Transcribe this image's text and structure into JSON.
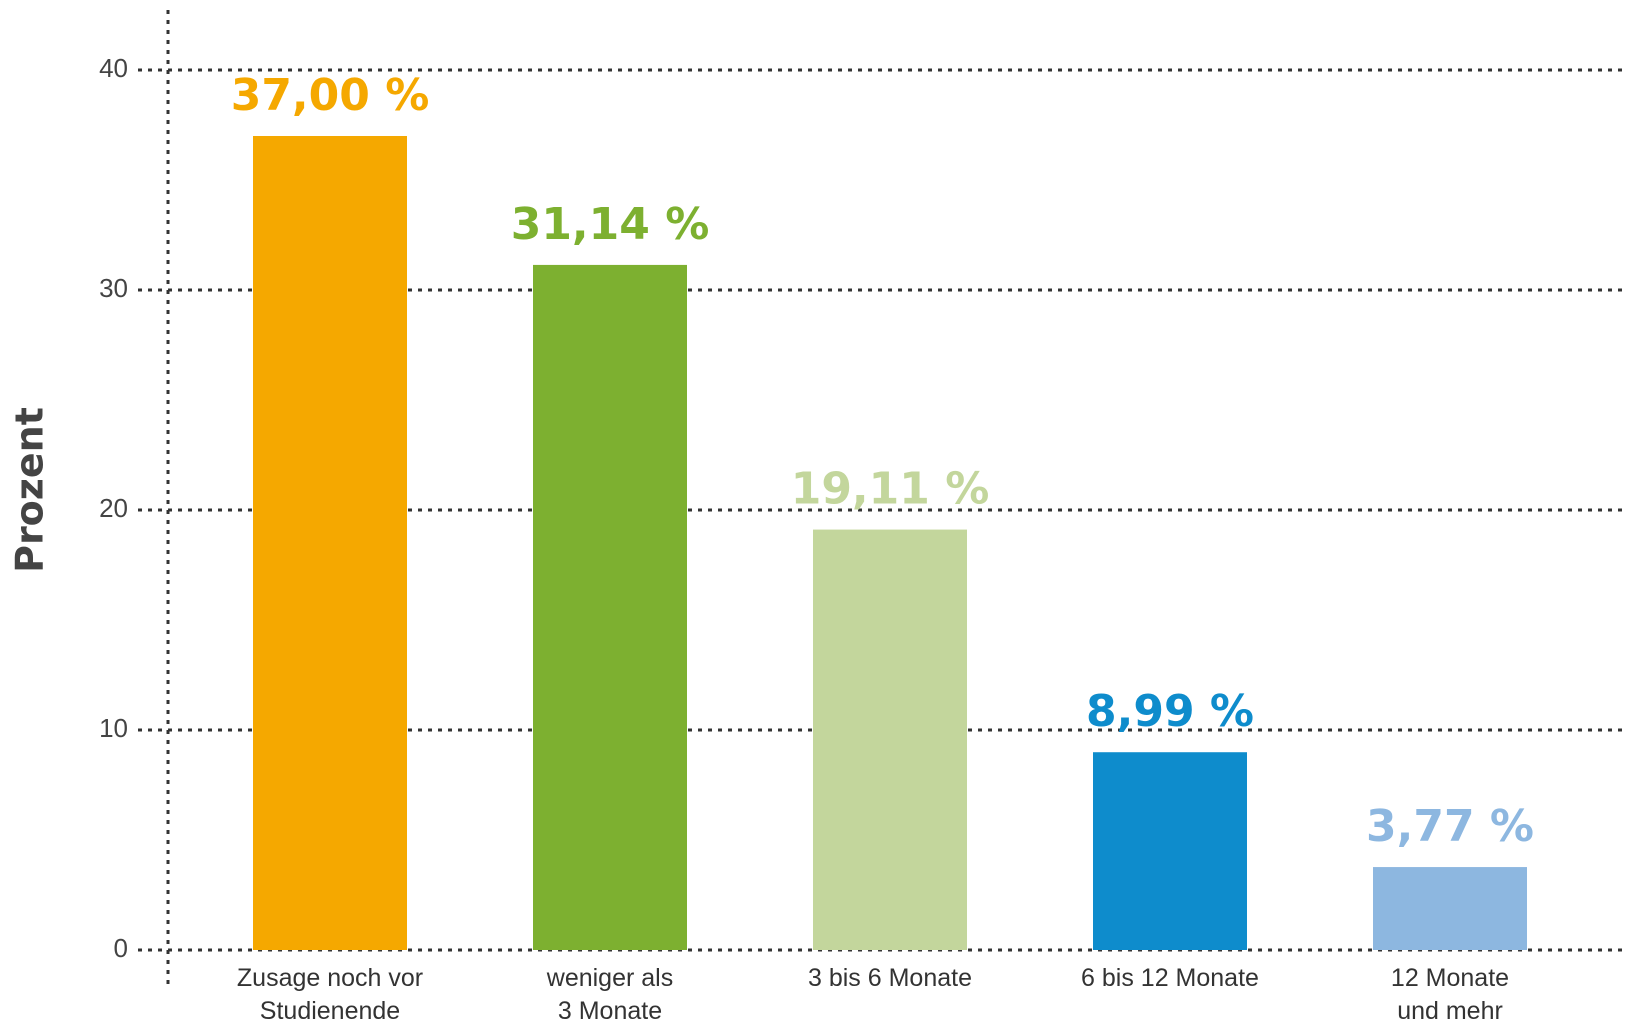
{
  "chart_data": {
    "type": "bar",
    "y_label": "Prozent",
    "categories": [
      "Zusage noch vor\nStudienende",
      "weniger als\n3 Monate",
      "3 bis 6 Monate",
      "6 bis 12 Monate",
      "12 Monate\nund mehr"
    ],
    "values": [
      37.0,
      31.14,
      19.11,
      8.99,
      3.77
    ],
    "value_labels": [
      "37,00 %",
      "31,14 %",
      "19,11 %",
      "8,99 %",
      "3,77 %"
    ],
    "colors": [
      "#f5a800",
      "#7db030",
      "#c3d69c",
      "#0e8ccc",
      "#8db7e0"
    ],
    "ylim": [
      0,
      40
    ],
    "yticks": [
      0,
      10,
      20,
      30,
      40
    ],
    "grid": true
  }
}
